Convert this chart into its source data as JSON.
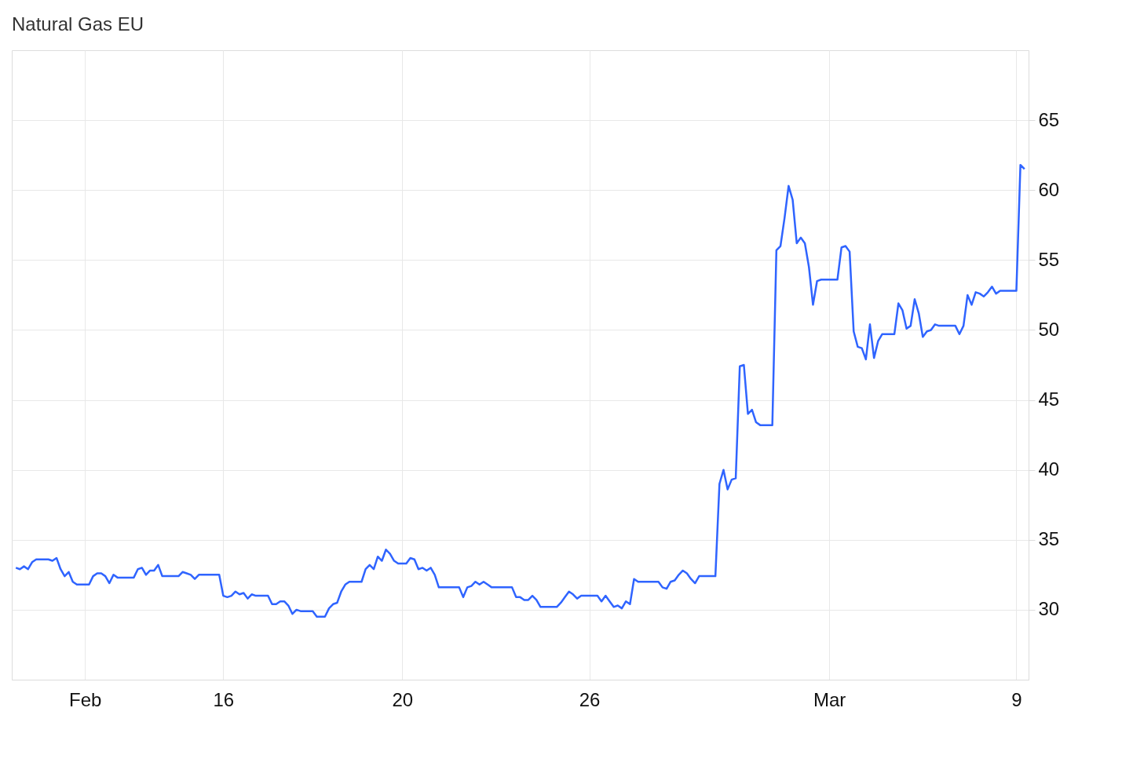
{
  "chart_data": {
    "type": "line",
    "title": "Natural Gas EU",
    "categories": [
      null,
      null,
      null,
      null,
      null,
      null,
      null,
      null,
      null,
      null,
      null,
      null,
      null,
      null,
      null,
      null,
      null,
      "Feb",
      null,
      null,
      null,
      null,
      null,
      null,
      null,
      null,
      null,
      null,
      null,
      null,
      null,
      null,
      null,
      null,
      null,
      null,
      null,
      null,
      null,
      null,
      null,
      null,
      null,
      null,
      null,
      null,
      null,
      null,
      null,
      null,
      null,
      "16",
      null,
      null,
      null,
      null,
      null,
      null,
      null,
      null,
      null,
      null,
      null,
      null,
      null,
      null,
      null,
      null,
      null,
      null,
      null,
      null,
      null,
      null,
      null,
      null,
      null,
      null,
      null,
      null,
      null,
      null,
      null,
      null,
      null,
      null,
      null,
      null,
      null,
      null,
      null,
      null,
      null,
      null,
      null,
      "20",
      null,
      null,
      null,
      null,
      null,
      null,
      null,
      null,
      null,
      null,
      null,
      null,
      null,
      null,
      null,
      null,
      null,
      null,
      null,
      null,
      null,
      null,
      null,
      null,
      null,
      null,
      null,
      null,
      null,
      null,
      null,
      null,
      null,
      null,
      null,
      null,
      null,
      null,
      null,
      null,
      null,
      null,
      null,
      null,
      null,
      "26",
      null,
      null,
      null,
      null,
      null,
      null,
      null,
      null,
      null,
      null,
      null,
      null,
      null,
      null,
      null,
      null,
      null,
      null,
      null,
      null,
      null,
      null,
      null,
      null,
      null,
      null,
      null,
      null,
      null,
      null,
      null,
      null,
      null,
      null,
      null,
      null,
      null,
      null,
      null,
      null,
      null,
      null,
      null,
      null,
      null,
      null,
      null,
      null,
      null,
      null,
      null,
      null,
      null,
      null,
      null,
      null,
      null,
      null,
      "Mar",
      null,
      null,
      null,
      null,
      null,
      null,
      null,
      null,
      null,
      null,
      null,
      null,
      null,
      null,
      null,
      null,
      null,
      null,
      null,
      null,
      null,
      null,
      null,
      null,
      null,
      null,
      null,
      null,
      null,
      null,
      null,
      null,
      null,
      null,
      null,
      null,
      null,
      null,
      null,
      null,
      null,
      null,
      null,
      null,
      null,
      "9",
      null,
      null
    ],
    "series": [
      {
        "color": "#2f64ff",
        "values": [
          33.0,
          32.9,
          33.1,
          32.9,
          33.4,
          33.6,
          33.6,
          33.6,
          33.6,
          33.5,
          33.7,
          32.9,
          32.4,
          32.7,
          32.0,
          31.8,
          31.8,
          31.8,
          31.8,
          32.4,
          32.6,
          32.6,
          32.4,
          31.9,
          32.5,
          32.3,
          32.3,
          32.3,
          32.3,
          32.3,
          32.9,
          33.0,
          32.5,
          32.8,
          32.8,
          33.2,
          32.4,
          32.4,
          32.4,
          32.4,
          32.4,
          32.7,
          32.6,
          32.5,
          32.2,
          32.5,
          32.5,
          32.5,
          32.5,
          32.5,
          32.5,
          31.0,
          30.9,
          31.0,
          31.3,
          31.1,
          31.2,
          30.8,
          31.1,
          31.0,
          31.0,
          31.0,
          31.0,
          30.4,
          30.4,
          30.6,
          30.6,
          30.3,
          29.7,
          30.0,
          29.9,
          29.9,
          29.9,
          29.9,
          29.5,
          29.5,
          29.5,
          30.1,
          30.4,
          30.5,
          31.3,
          31.8,
          32.0,
          32.0,
          32.0,
          32.0,
          32.9,
          33.2,
          32.9,
          33.8,
          33.5,
          34.3,
          34.0,
          33.5,
          33.3,
          33.3,
          33.3,
          33.7,
          33.6,
          32.9,
          33.0,
          32.8,
          33.0,
          32.5,
          31.6,
          31.6,
          31.6,
          31.6,
          31.6,
          31.6,
          30.9,
          31.6,
          31.7,
          32.0,
          31.8,
          32.0,
          31.8,
          31.6,
          31.6,
          31.6,
          31.6,
          31.6,
          31.6,
          30.9,
          30.9,
          30.7,
          30.7,
          31.0,
          30.7,
          30.2,
          30.2,
          30.2,
          30.2,
          30.2,
          30.5,
          30.9,
          31.3,
          31.1,
          30.8,
          31.0,
          31.0,
          31.0,
          31.0,
          31.0,
          30.6,
          31.0,
          30.6,
          30.2,
          30.3,
          30.1,
          30.6,
          30.4,
          32.2,
          32.0,
          32.0,
          32.0,
          32.0,
          32.0,
          32.0,
          31.6,
          31.5,
          32.0,
          32.1,
          32.5,
          32.8,
          32.6,
          32.2,
          31.9,
          32.4,
          32.4,
          32.4,
          32.4,
          32.4,
          39.0,
          40.0,
          38.6,
          39.3,
          39.4,
          47.4,
          47.5,
          44.0,
          44.3,
          43.4,
          43.2,
          43.2,
          43.2,
          43.2,
          55.7,
          56.0,
          58.0,
          60.3,
          59.3,
          56.2,
          56.6,
          56.2,
          54.5,
          51.8,
          53.5,
          53.6,
          53.6,
          53.6,
          53.6,
          53.6,
          55.9,
          56.0,
          55.6,
          49.9,
          48.8,
          48.7,
          47.9,
          50.4,
          48.0,
          49.2,
          49.7,
          49.7,
          49.7,
          49.7,
          51.9,
          51.4,
          50.1,
          50.3,
          52.2,
          51.2,
          49.5,
          49.9,
          50.0,
          50.4,
          50.3,
          50.3,
          50.3,
          50.3,
          50.3,
          49.7,
          50.3,
          52.5,
          51.8,
          52.7,
          52.6,
          52.4,
          52.7,
          53.1,
          52.6,
          52.8,
          52.8,
          52.8,
          52.8,
          52.8,
          61.8,
          61.5
        ]
      }
    ],
    "ylim": [
      25,
      70
    ],
    "yticks": [
      30,
      35,
      40,
      45,
      50,
      55,
      60,
      65
    ],
    "grid": true,
    "marker": "none",
    "line_style": "solid"
  }
}
